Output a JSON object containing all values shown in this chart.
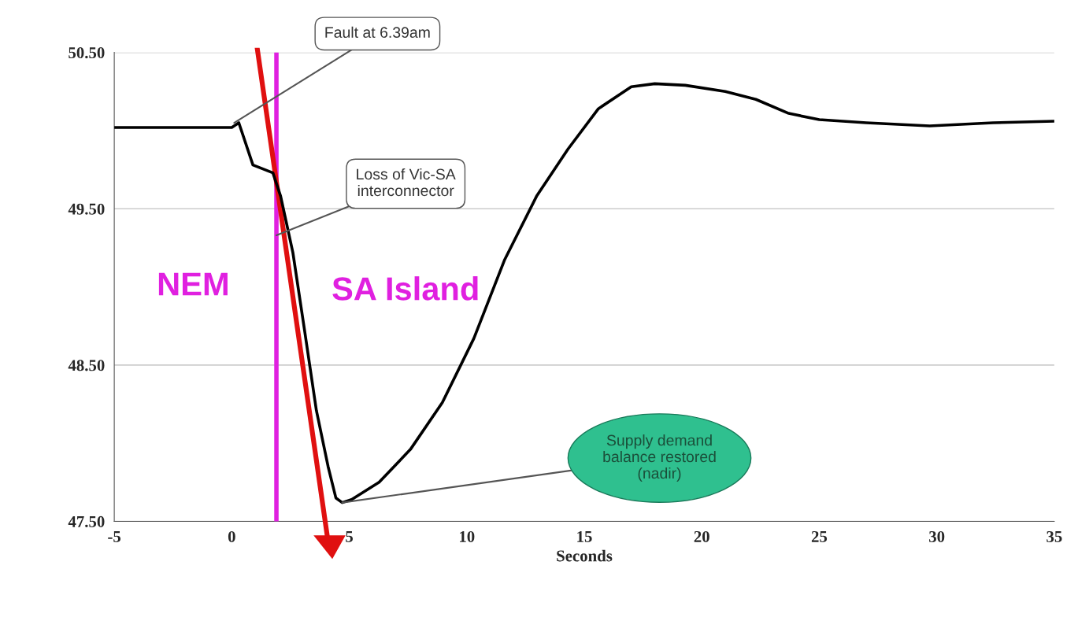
{
  "chart_data": {
    "type": "line",
    "xlabel": "Seconds",
    "x": [
      -5,
      0,
      0.3,
      0.9,
      1.75,
      2.08,
      2.6,
      3.1,
      3.6,
      4.1,
      4.43,
      4.7,
      5.1,
      6.27,
      7.6,
      8.96,
      10.3,
      11.6,
      12.97,
      14.3,
      15.6,
      17.0,
      18.0,
      19.3,
      21.0,
      22.3,
      23.7,
      25.0,
      27.0,
      29.7,
      32.4,
      35
    ],
    "series": [
      {
        "color": "#000000",
        "values": [
          50.02,
          50.02,
          50.05,
          49.78,
          49.73,
          49.58,
          49.22,
          48.72,
          48.21,
          47.85,
          47.65,
          47.62,
          47.64,
          47.75,
          47.96,
          48.26,
          48.67,
          49.17,
          49.58,
          49.88,
          50.14,
          50.28,
          50.3,
          50.29,
          50.25,
          50.2,
          50.11,
          50.07,
          50.05,
          50.03,
          50.05,
          50.06
        ]
      }
    ],
    "xlim": [
      -5,
      35
    ],
    "xticks": [
      -5,
      0,
      5,
      10,
      15,
      20,
      25,
      30,
      35
    ],
    "ylim": [
      47.5,
      50.5
    ],
    "yticks": [
      {
        "value": 47.5,
        "label": "47.50"
      },
      {
        "value": 48.5,
        "label": "48.50"
      },
      {
        "value": 49.5,
        "label": "49.50"
      },
      {
        "value": 50.5,
        "label": "50.50"
      }
    ],
    "grid": "y",
    "marker": "none",
    "line_style": "solid",
    "ref_lines": [
      {
        "axis": "x",
        "value": 1.9,
        "color": "#e020e0"
      }
    ],
    "annotations": [
      {
        "text": "Fault at 6.39am",
        "x": 0.1,
        "y": 50.05
      },
      {
        "text": "Loss of Vic-SA\ninterconnector",
        "x": 1.9,
        "y": 49.33
      },
      {
        "text": "Supply demand\nbalance restored\n(nadir)",
        "x": 4.7,
        "y": 47.62
      },
      "NEM",
      "SA Island"
    ]
  }
}
